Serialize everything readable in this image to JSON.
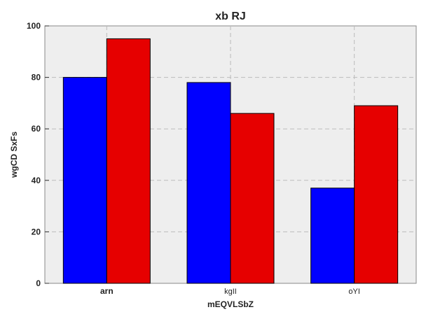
{
  "chart_data": {
    "type": "bar",
    "title": "xb RJ",
    "xlabel": "mEQVLSbZ",
    "ylabel": "wgCD SxFs",
    "categories": [
      "arn",
      "kgII",
      "oYI"
    ],
    "series": [
      {
        "values": [
          80,
          78,
          37
        ],
        "color": "#0000ff"
      },
      {
        "values": [
          95,
          66,
          69
        ],
        "color": "#e60000"
      }
    ],
    "ylim": [
      0,
      100
    ],
    "yticks": [
      "0",
      "20",
      "40",
      "60",
      "80",
      "100"
    ],
    "grid": true,
    "background": "#eeeeee"
  }
}
